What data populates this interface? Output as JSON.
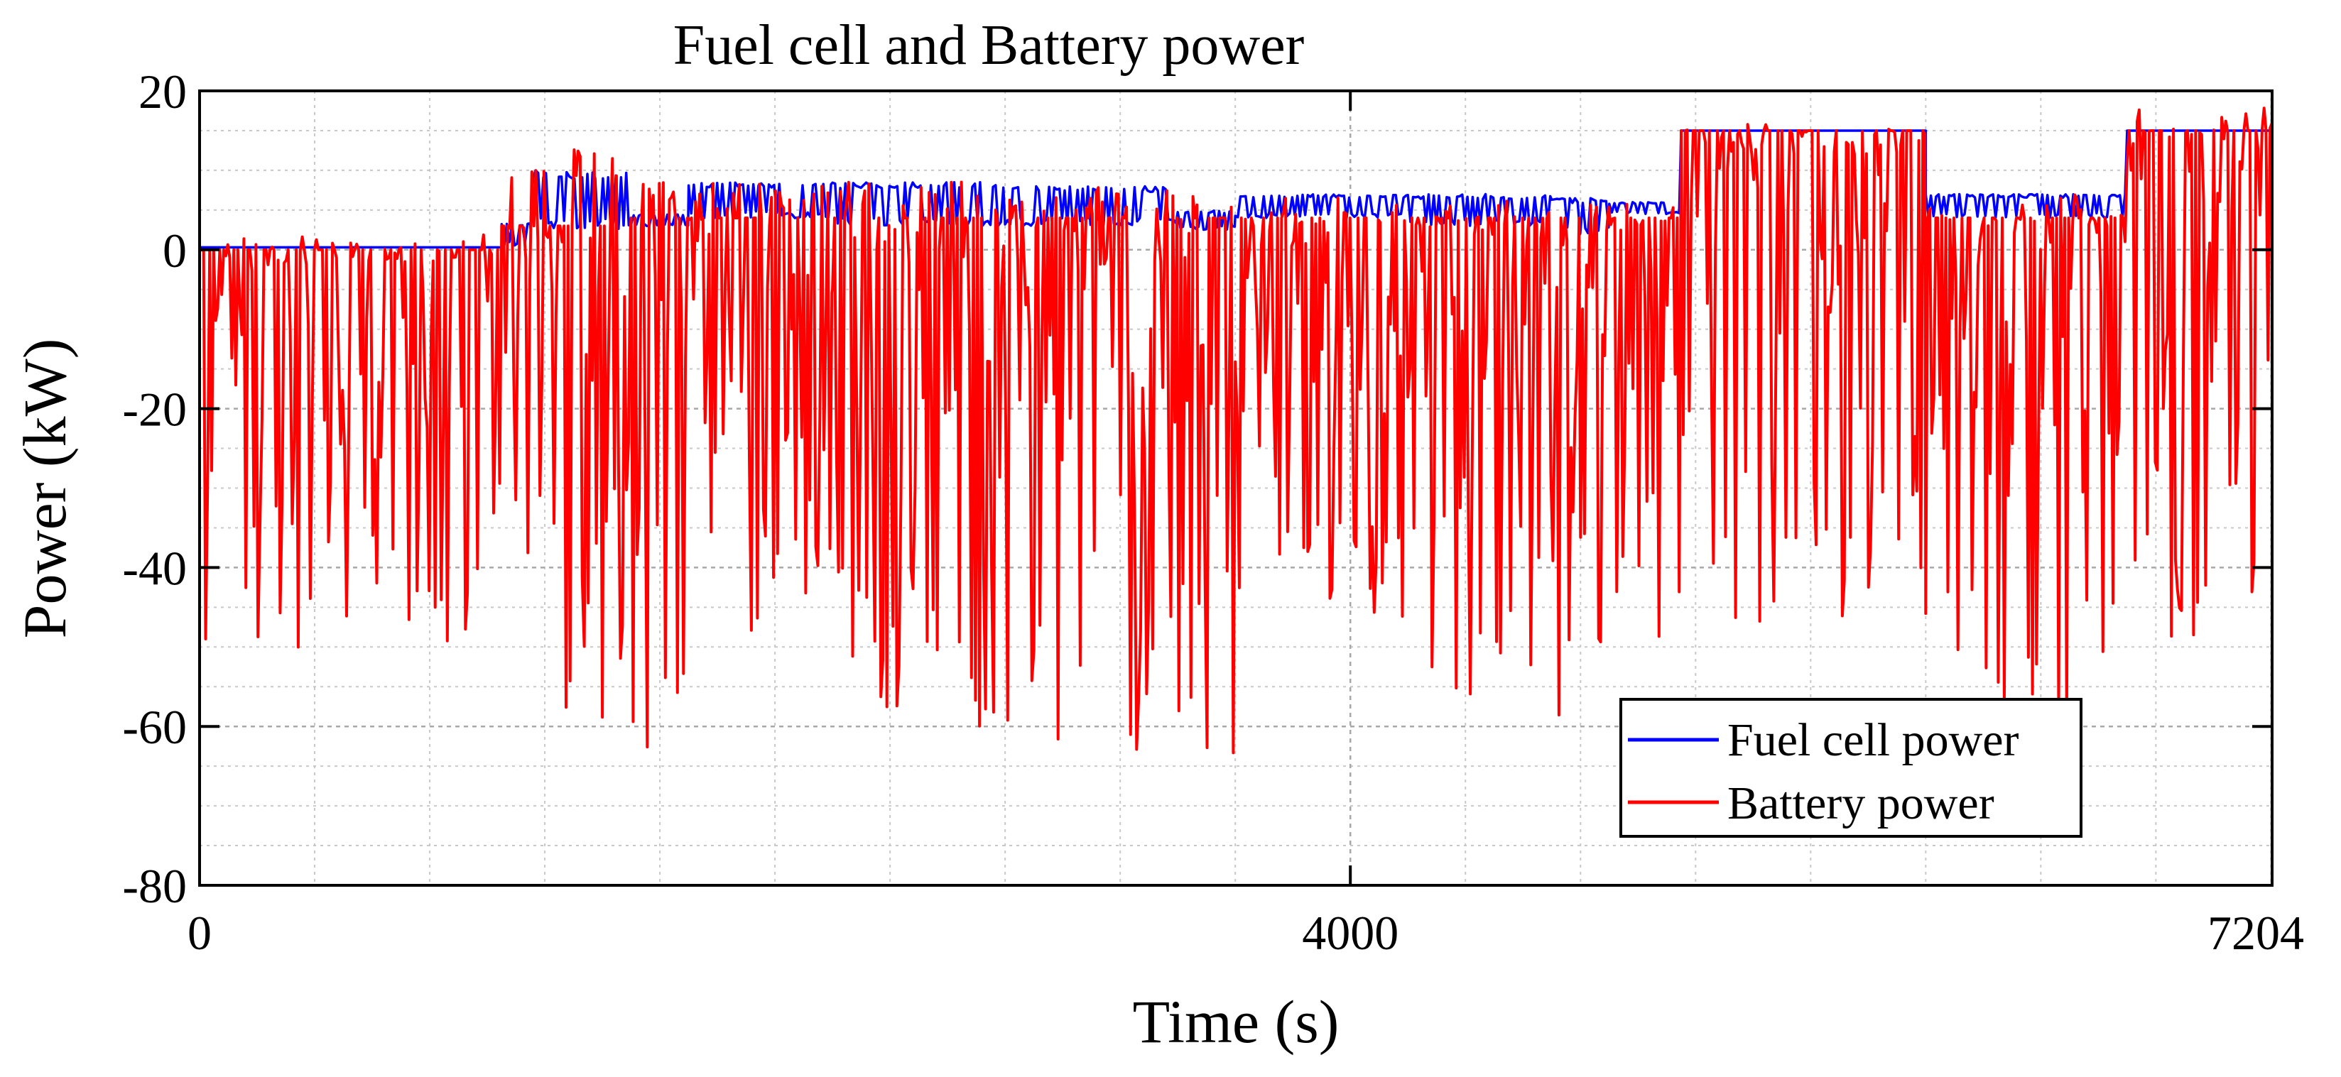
{
  "chart_data": {
    "type": "line",
    "title": "Fuel cell and Battery power",
    "xlabel": "Time (s)",
    "ylabel": "Power (kW)",
    "xlim": [
      0,
      7204
    ],
    "ylim": [
      -80,
      20
    ],
    "x_ticks": [
      0,
      4000,
      7204
    ],
    "x_tick_labels": [
      "0",
      "4000",
      "7204"
    ],
    "y_ticks": [
      20,
      0,
      -20,
      -40,
      -60,
      -80
    ],
    "y_tick_labels": [
      "20",
      "0",
      "-20",
      "-40",
      "-60",
      "-80"
    ],
    "grid": true,
    "minor_grid": true,
    "legend_position": "bottom-right",
    "series": [
      {
        "name": "Fuel cell power",
        "color": "#0000ff",
        "segments": [
          {
            "start": 0,
            "end": 1050,
            "low": 0.3,
            "high": 0.6
          },
          {
            "start": 1050,
            "end": 1150,
            "low": 0.5,
            "high": 3.5
          },
          {
            "start": 1150,
            "end": 1500,
            "low": 2.5,
            "high": 10
          },
          {
            "start": 1500,
            "end": 1700,
            "low": 3,
            "high": 4.5
          },
          {
            "start": 1700,
            "end": 2200,
            "low": 4,
            "high": 8.5
          },
          {
            "start": 2200,
            "end": 2800,
            "low": 3,
            "high": 8.5
          },
          {
            "start": 2800,
            "end": 3400,
            "low": 3,
            "high": 8
          },
          {
            "start": 3400,
            "end": 3600,
            "low": 2.5,
            "high": 5
          },
          {
            "start": 3600,
            "end": 4200,
            "low": 4,
            "high": 7
          },
          {
            "start": 4200,
            "end": 4700,
            "low": 3,
            "high": 7
          },
          {
            "start": 4700,
            "end": 4900,
            "low": 2,
            "high": 6.5
          },
          {
            "start": 4900,
            "end": 5150,
            "low": 4.5,
            "high": 6
          },
          {
            "start": 5150,
            "end": 6000,
            "low": 15,
            "high": 15
          },
          {
            "start": 6000,
            "end": 6700,
            "low": 4,
            "high": 7
          },
          {
            "start": 6700,
            "end": 7204,
            "low": 15,
            "high": 15
          }
        ]
      },
      {
        "name": "Battery power",
        "color": "#ff0000",
        "segments": [
          {
            "start": 0,
            "end": 1050,
            "min": -52,
            "base": 0,
            "max": 2
          },
          {
            "start": 1050,
            "end": 1500,
            "min": -61,
            "base": 3,
            "max": 13
          },
          {
            "start": 1500,
            "end": 1750,
            "min": -64,
            "base": 4,
            "max": 10
          },
          {
            "start": 1750,
            "end": 2200,
            "min": -48,
            "base": 4,
            "max": 9
          },
          {
            "start": 2200,
            "end": 2900,
            "min": -61,
            "base": 4,
            "max": 9
          },
          {
            "start": 2900,
            "end": 3600,
            "min": -64,
            "base": 4,
            "max": 8
          },
          {
            "start": 3600,
            "end": 4200,
            "min": -47,
            "base": 4,
            "max": 7
          },
          {
            "start": 4200,
            "end": 4800,
            "min": -61,
            "base": 4,
            "max": 7
          },
          {
            "start": 4800,
            "end": 5150,
            "min": -51,
            "base": 4,
            "max": 6
          },
          {
            "start": 5150,
            "end": 6000,
            "min": -47,
            "base": 15,
            "max": 16
          },
          {
            "start": 6000,
            "end": 6700,
            "min": -61,
            "base": 4,
            "max": 7
          },
          {
            "start": 6700,
            "end": 7204,
            "min": -51,
            "base": 15,
            "max": 18
          }
        ]
      }
    ]
  }
}
